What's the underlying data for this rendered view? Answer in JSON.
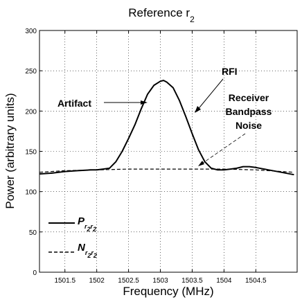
{
  "chart_data": {
    "type": "line",
    "title_main": "Reference r",
    "title_sub": "2",
    "xlabel": "Frequency (MHz)",
    "ylabel": "Power (arbitrary units)",
    "xlim": [
      1501.1,
      1505.15
    ],
    "ylim": [
      0,
      300
    ],
    "grid": "dotted",
    "xticks": [
      1501.5,
      1502,
      1502.5,
      1503,
      1503.5,
      1504,
      1504.5
    ],
    "xtick_labels": [
      "1501.5",
      "1502",
      "1502.5",
      "1503",
      "1503.5",
      "1504",
      "1504.5"
    ],
    "yticks": [
      0,
      50,
      100,
      150,
      200,
      250,
      300
    ],
    "ytick_labels": [
      "0",
      "50",
      "100",
      "150",
      "200",
      "250",
      "300"
    ],
    "series": [
      {
        "legend_main": "P",
        "legend_sub": "r",
        "legend_subsub": "2",
        "legend_sub2": "r",
        "legend_subsub2": "2",
        "style": "solid",
        "x": [
          1501.1,
          1501.3,
          1501.5,
          1501.7,
          1501.9,
          1502.0,
          1502.1,
          1502.2,
          1502.3,
          1502.4,
          1502.5,
          1502.6,
          1502.7,
          1502.8,
          1502.9,
          1503.0,
          1503.05,
          1503.1,
          1503.2,
          1503.3,
          1503.4,
          1503.5,
          1503.6,
          1503.7,
          1503.8,
          1503.9,
          1504.0,
          1504.1,
          1504.2,
          1504.3,
          1504.4,
          1504.5,
          1504.7,
          1504.9,
          1505.1
        ],
        "y": [
          122,
          123,
          125,
          126,
          127,
          127,
          128,
          129,
          137,
          150,
          166,
          183,
          203,
          221,
          232,
          237,
          238,
          236,
          229,
          213,
          193,
          172,
          152,
          137,
          129,
          127,
          127,
          128,
          129,
          131,
          131,
          130,
          127,
          124,
          121
        ]
      },
      {
        "legend_main": "N",
        "legend_sub": "r",
        "legend_subsub": "2",
        "legend_sub2": "r",
        "legend_subsub2": "2",
        "style": "dashed",
        "x": [
          1501.1,
          1501.5,
          1502.0,
          1502.5,
          1503.0,
          1503.5,
          1504.0,
          1504.5,
          1505.1
        ],
        "y": [
          124,
          126,
          127,
          128,
          128,
          128,
          128,
          127,
          124
        ]
      }
    ],
    "annotations": [
      {
        "label": "Artifact",
        "x": 1502.75,
        "y": 210
      },
      {
        "label": "RFI",
        "x": 1503.35,
        "y": 192
      },
      {
        "label": "Receiver",
        "x": 1503.45,
        "y": 128
      },
      {
        "label": "Bandpass",
        "x": 1503.45,
        "y": 128
      },
      {
        "label": "Noise",
        "x": 1503.45,
        "y": 128
      }
    ]
  }
}
